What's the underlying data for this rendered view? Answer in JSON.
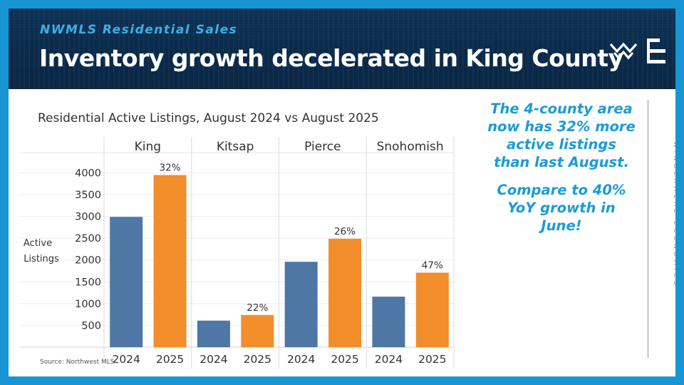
{
  "header": {
    "subtitle": "NWMLS Residential Sales",
    "title": "Inventory growth decelerated in King County"
  },
  "callout": {
    "line1": "The 4-county area now has 32% more active listings than last August.",
    "line2": "Compare to 40% YoY growth in June!"
  },
  "brand_vertical": "WINDERMERE ECONOMICS",
  "source": "Source: Northwest MLS",
  "colors": {
    "series_2024": "#4e77a6",
    "series_2025": "#f28e2b",
    "accent": "#1b9bd7",
    "header_bg": "#0b2b4c"
  },
  "icons": [
    "windermere-w-logo-icon",
    "windermere-e-logo-icon"
  ],
  "chart_data": {
    "type": "bar",
    "title": "Residential Active Listings, August 2024 vs August 2025",
    "ylabel": "Active Listings",
    "xlabel": "",
    "ylim": [
      0,
      4400
    ],
    "yticks": [
      500,
      1000,
      1500,
      2000,
      2500,
      3000,
      3500,
      4000
    ],
    "grid": true,
    "groups": [
      {
        "name": "King",
        "values": [
          2990,
          3950
        ],
        "labels": [
          "2024",
          "2025"
        ],
        "growth": "32%"
      },
      {
        "name": "Kitsap",
        "values": [
          610,
          740
        ],
        "labels": [
          "2024",
          "2025"
        ],
        "growth": "22%"
      },
      {
        "name": "Pierce",
        "values": [
          1960,
          2490
        ],
        "labels": [
          "2024",
          "2025"
        ],
        "growth": "26%"
      },
      {
        "name": "Snohomish",
        "values": [
          1160,
          1710
        ],
        "labels": [
          "2024",
          "2025"
        ],
        "growth": "47%"
      }
    ]
  }
}
